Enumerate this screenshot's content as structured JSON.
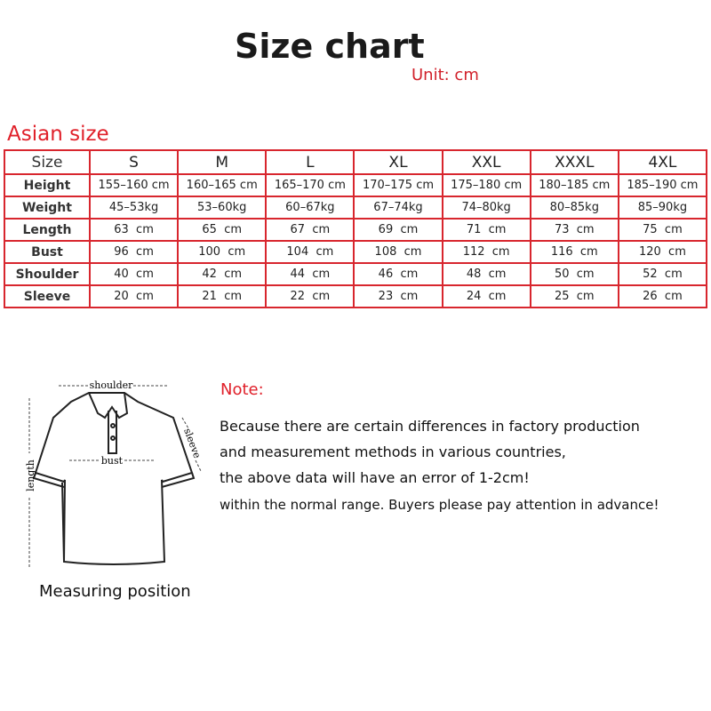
{
  "title": "Size chart",
  "unit": "Unit: cm",
  "table_title": "Asian size",
  "table": {
    "header": [
      "Size",
      "S",
      "M",
      "L",
      "XL",
      "XXL",
      "XXXL",
      "4XL"
    ],
    "rows": [
      [
        "Height",
        "155–160 cm",
        "160–165 cm",
        "165–170 cm",
        "170–175 cm",
        "175–180 cm",
        "180–185 cm",
        "185–190 cm"
      ],
      [
        "Weight",
        "45–53kg",
        "53–60kg",
        "60–67kg",
        "67–74kg",
        "74–80kg",
        "80–85kg",
        "85–90kg"
      ],
      [
        "Length",
        "63  cm",
        "65  cm",
        "67  cm",
        "69  cm",
        "71  cm",
        "73  cm",
        "75  cm"
      ],
      [
        "Bust",
        "96  cm",
        "100  cm",
        "104  cm",
        "108  cm",
        "112  cm",
        "116  cm",
        "120  cm"
      ],
      [
        "Shoulder",
        "40  cm",
        "42  cm",
        "44  cm",
        "46  cm",
        "48  cm",
        "50  cm",
        "52  cm"
      ],
      [
        "Sleeve",
        "20  cm",
        "21  cm",
        "22  cm",
        "23  cm",
        "24  cm",
        "25  cm",
        "26  cm"
      ]
    ]
  },
  "diagram": {
    "shoulder": "shoulder",
    "bust": "bust",
    "length": "length",
    "sleeve": "sleeve",
    "caption": "Measuring position"
  },
  "note": {
    "heading": "Note:",
    "lines": [
      "Because there are certain differences in factory production",
      "and measurement methods in various countries,",
      "the above data will have an error of 1-2cm!",
      "within the normal range. Buyers please pay attention in advance!"
    ]
  },
  "colors": {
    "accent": "#e0202a",
    "border": "#d8262e"
  }
}
